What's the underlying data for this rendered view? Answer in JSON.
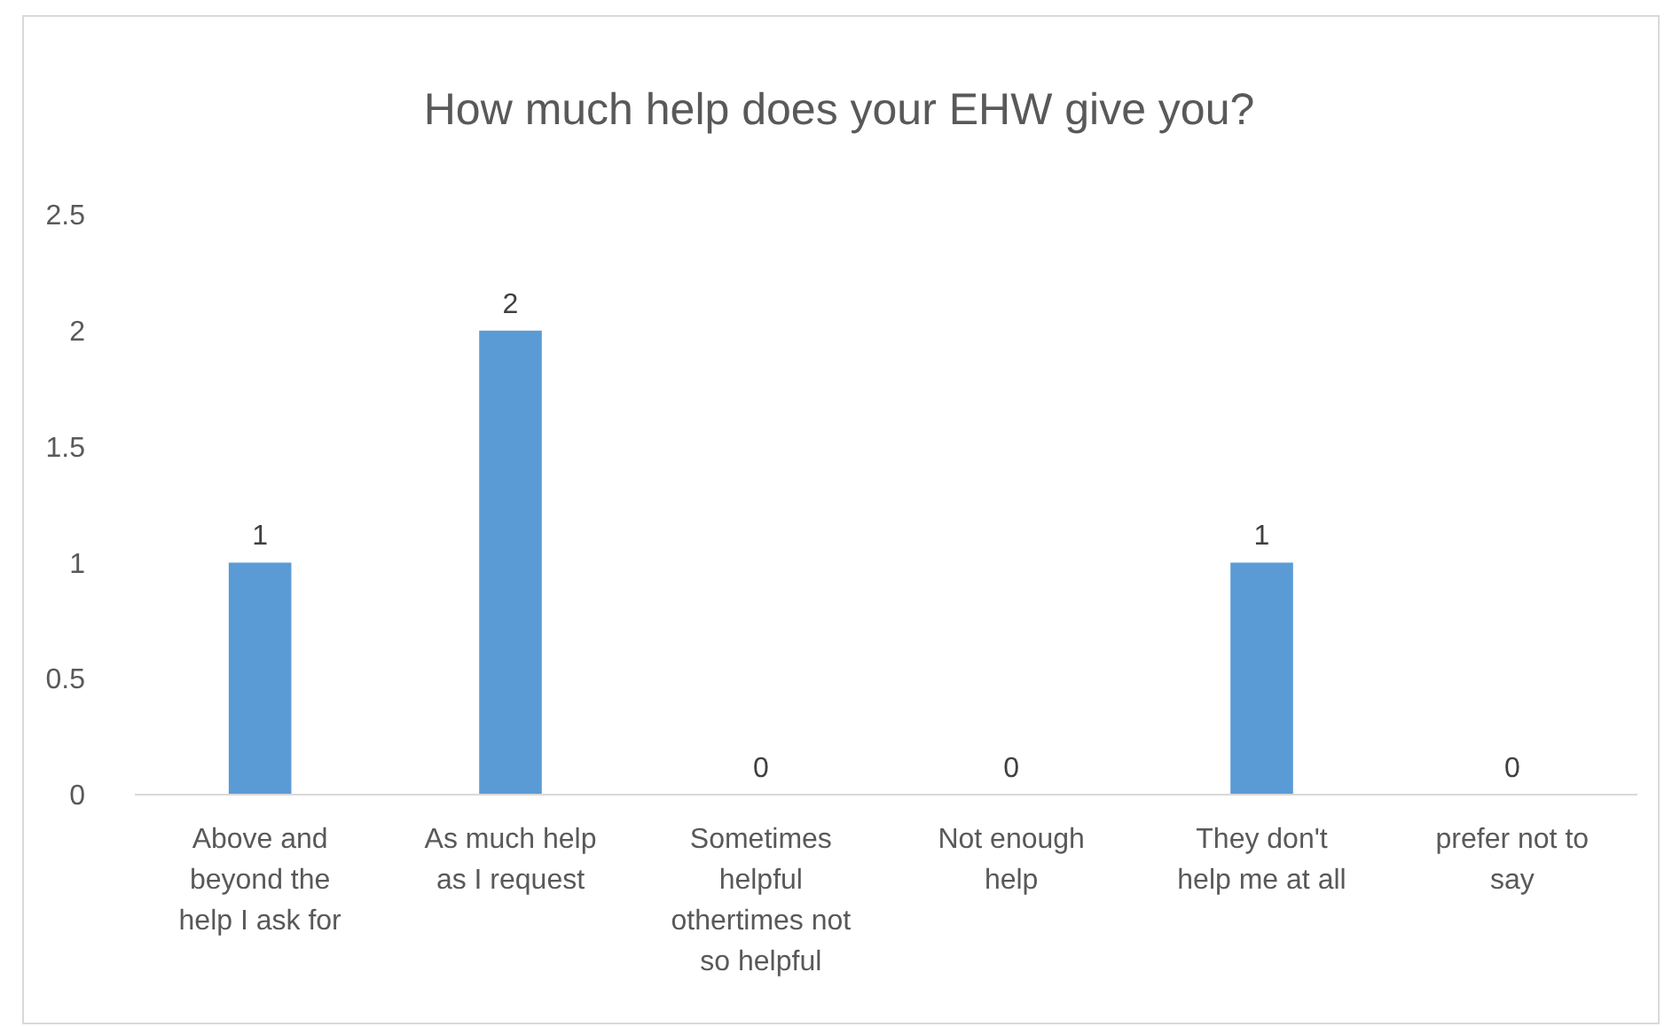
{
  "chart_data": {
    "type": "bar",
    "title": "How much help does your EHW give you?",
    "categories": [
      "Above and beyond the help I ask for",
      "As much help as I request",
      "Sometimes helpful othertimes not so helpful",
      "Not enough help",
      "They don't help me at all",
      "prefer not to say"
    ],
    "values": [
      1,
      2,
      0,
      0,
      1,
      0
    ],
    "color": "#5b9bd5",
    "ylim": [
      0,
      2.5
    ],
    "yticks": [
      0,
      0.5,
      1,
      1.5,
      2,
      2.5
    ],
    "data_labels": true
  }
}
